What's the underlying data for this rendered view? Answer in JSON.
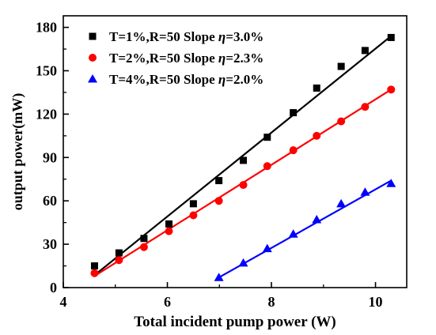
{
  "chart_data": {
    "type": "scatter",
    "xlabel": "Total incident pump power (W)",
    "ylabel": "output power(mW)",
    "xlim": [
      4,
      10.6
    ],
    "ylim": [
      0,
      188
    ],
    "xticks": [
      4,
      6,
      8,
      10
    ],
    "yticks": [
      0,
      30,
      60,
      90,
      120,
      150,
      180
    ],
    "x_minor_ticks": [
      5,
      7,
      9
    ],
    "y_minor_ticks": [
      15,
      45,
      75,
      105,
      135,
      165
    ],
    "legend_position": "top-left",
    "grid": false,
    "series": [
      {
        "name": "T=1%,R=50 Slope η=3.0%",
        "label_prefix": "T=1%,R=50 Slope ",
        "label_symbol": "η",
        "label_suffix": "=3.0%",
        "marker": "square",
        "color": "#000000",
        "x": [
          4.6,
          5.07,
          5.55,
          6.03,
          6.5,
          6.99,
          7.46,
          7.92,
          8.42,
          8.87,
          9.34,
          9.8,
          10.3
        ],
        "y": [
          15,
          24,
          34,
          44,
          58,
          74,
          88,
          104,
          121,
          138,
          153,
          164,
          173
        ],
        "fit_line": [
          [
            4.65,
            10
          ],
          [
            10.3,
            174
          ]
        ]
      },
      {
        "name": "T=2%,R=50 Slope η=2.3%",
        "label_prefix": "T=2%,R=50 Slope ",
        "label_symbol": "η",
        "label_suffix": "=2.3%",
        "marker": "circle",
        "color": "#ff0000",
        "x": [
          4.6,
          5.07,
          5.55,
          6.03,
          6.5,
          6.99,
          7.46,
          7.92,
          8.42,
          8.87,
          9.34,
          9.8,
          10.3
        ],
        "y": [
          10,
          19,
          28,
          39,
          50,
          60,
          71,
          84,
          95,
          105,
          115,
          125,
          137
        ],
        "fit_line": [
          [
            4.6,
            8
          ],
          [
            10.3,
            137
          ]
        ]
      },
      {
        "name": "T=4%,R=50 Slope η=2.0%",
        "label_prefix": "T=4%,R=50 Slope ",
        "label_symbol": "η",
        "label_suffix": "=2.0%",
        "marker": "triangle",
        "color": "#0000ff",
        "x": [
          6.99,
          7.46,
          7.92,
          8.42,
          8.87,
          9.34,
          9.8,
          10.3
        ],
        "y": [
          7,
          17,
          27,
          37,
          47,
          58,
          66,
          72
        ],
        "fit_line": [
          [
            6.99,
            7
          ],
          [
            10.3,
            74
          ]
        ]
      }
    ]
  }
}
